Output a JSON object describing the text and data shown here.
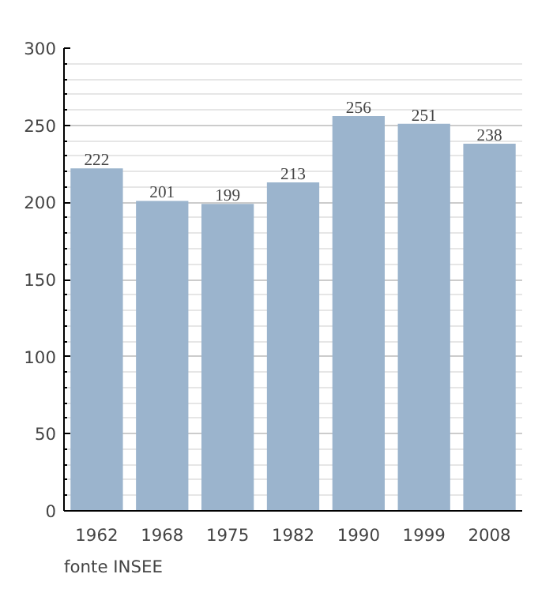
{
  "chart_data": {
    "type": "bar",
    "categories": [
      "1962",
      "1968",
      "1975",
      "1982",
      "1990",
      "1999",
      "2008"
    ],
    "values": [
      222,
      201,
      199,
      213,
      256,
      251,
      238
    ],
    "color": "#9bb4cd",
    "ylim": [
      0,
      300
    ],
    "yticks": [
      0,
      50,
      100,
      150,
      200,
      250,
      300
    ],
    "grid": "y",
    "data_labels": true,
    "annotations": [
      "fonte INSEE"
    ]
  }
}
